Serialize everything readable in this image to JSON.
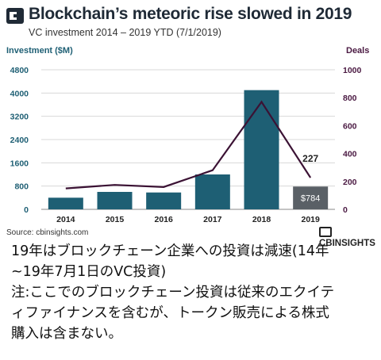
{
  "header": {
    "title": "Blockchain’s meteoric rise slowed in 2019",
    "subtitle": "VC investment 2014 – 2019 YTD (7/1/2019)"
  },
  "footer": {
    "source": "Source: cbinsights.com",
    "brand": "CBINSIGHTS"
  },
  "caption": {
    "line1": "19年はブロックチェーン企業への投資は減速(14年",
    "line2": "~19年7月1日のVC投資)",
    "line3": "注:ここでのブロックチェーン投資は従来のエクイテ",
    "line4": "ィファイナンスを含むが、トークン販売による株式",
    "line5": "購入は含まない。"
  },
  "colors": {
    "bar": "#1e5f74",
    "bar_last": "#5a6066",
    "line": "#3b1234",
    "axis_left": "#1e5f74",
    "axis_right": "#4a1942"
  },
  "chart_data": {
    "type": "bar",
    "categories": [
      "2014",
      "2015",
      "2016",
      "2017",
      "2018",
      "2019"
    ],
    "series": [
      {
        "name": "Investment ($M)",
        "type": "bar",
        "axis": "left",
        "values": [
          400,
          600,
          580,
          1200,
          4100,
          784
        ]
      },
      {
        "name": "Deals",
        "type": "line",
        "axis": "right",
        "values": [
          150,
          175,
          160,
          280,
          770,
          227
        ]
      }
    ],
    "ylabel": "Investment ($M)",
    "y2label": "Deals",
    "ylim": [
      0,
      4800
    ],
    "y2lim": [
      0,
      1000
    ],
    "yticks": [
      "0",
      "800",
      "1600",
      "2400",
      "3200",
      "4000",
      "4800"
    ],
    "y2ticks": [
      "0",
      "200",
      "400",
      "600",
      "800",
      "1000"
    ],
    "annotations": {
      "last_bar_label": "$784",
      "last_point_label": "227"
    },
    "grid": true
  }
}
